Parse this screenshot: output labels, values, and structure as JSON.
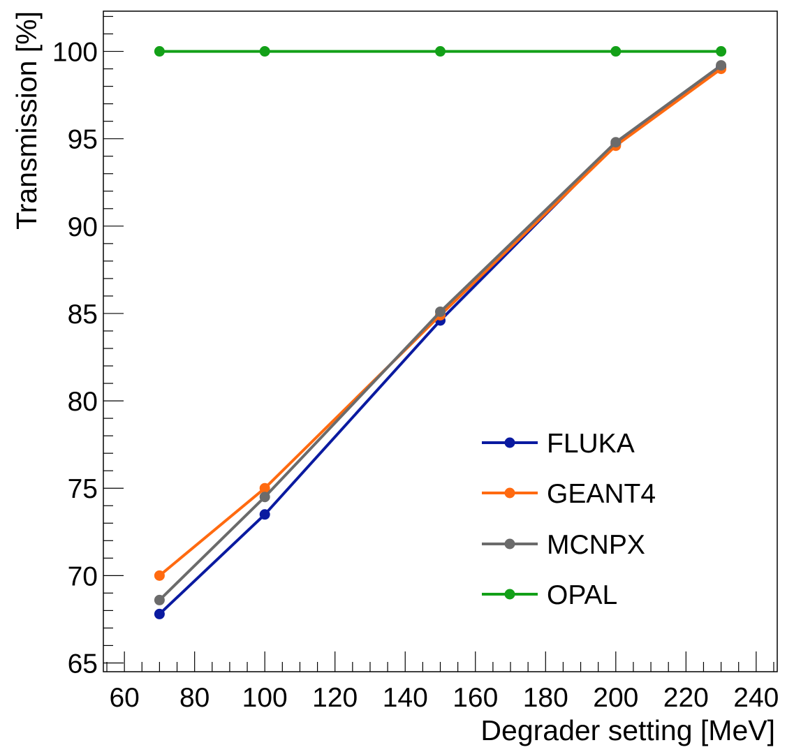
{
  "chart_data": {
    "type": "line",
    "title": "",
    "xlabel": "Degrader setting [MeV]",
    "ylabel": "Transmission [%]",
    "xlim": [
      54,
      246
    ],
    "ylim": [
      64.5,
      102.3
    ],
    "x_ticks": [
      60,
      80,
      100,
      120,
      140,
      160,
      180,
      200,
      220,
      240
    ],
    "x_tick_labels": [
      "60",
      "80",
      "100",
      "120",
      "140",
      "160",
      "180",
      "200",
      "220",
      "240"
    ],
    "y_ticks": [
      65,
      70,
      75,
      80,
      85,
      90,
      95,
      100
    ],
    "y_tick_labels": [
      "65",
      "70",
      "75",
      "80",
      "85",
      "90",
      "95",
      "100"
    ],
    "grid": false,
    "legend_position": "bottom-right",
    "x": [
      70,
      100,
      150,
      200,
      230
    ],
    "series": [
      {
        "name": "FLUKA",
        "color": "#0a1aa0",
        "values": [
          67.8,
          73.5,
          84.6,
          94.7,
          99.1
        ]
      },
      {
        "name": "GEANT4",
        "color": "#ff6a10",
        "values": [
          70.0,
          75.0,
          84.9,
          94.6,
          99.0
        ]
      },
      {
        "name": "MCNPX",
        "color": "#6b6b6b",
        "values": [
          68.6,
          74.5,
          85.1,
          94.8,
          99.2
        ]
      },
      {
        "name": "OPAL",
        "color": "#13a018",
        "values": [
          100.0,
          100.0,
          100.0,
          100.0,
          100.0
        ]
      }
    ]
  }
}
